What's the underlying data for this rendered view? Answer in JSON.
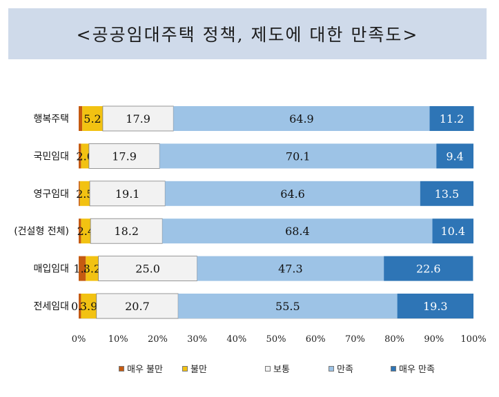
{
  "title": "<공공임대주택 정책, 제도에 대한 만족도>",
  "chart_data": {
    "type": "bar",
    "orientation": "horizontal",
    "stacked": true,
    "percent": true,
    "categories": [
      "행복주택",
      "국민임대",
      "영구임대",
      "(건설형 전체)",
      "매입임대",
      "전세임대"
    ],
    "series": [
      {
        "name": "매우 불만",
        "color": "#c55a11",
        "values": [
          0.9,
          0.6,
          0.3,
          0.6,
          1.8,
          0.6
        ],
        "labels": [
          "",
          "",
          "",
          "",
          "1.8",
          "0.6"
        ]
      },
      {
        "name": "불만",
        "color": "#f2c212",
        "values": [
          5.2,
          2.0,
          2.5,
          2.4,
          3.2,
          3.9
        ],
        "labels": [
          "5.2",
          "2.0",
          "2.5",
          "2.4",
          "3.2",
          "3.9"
        ]
      },
      {
        "name": "보통",
        "color": "#f2f2f2",
        "values": [
          17.9,
          17.9,
          19.1,
          18.2,
          25.0,
          20.7
        ],
        "labels": [
          "17.9",
          "17.9",
          "19.1",
          "18.2",
          "25.0",
          "20.7"
        ]
      },
      {
        "name": "만족",
        "color": "#9dc3e6",
        "values": [
          64.9,
          70.1,
          64.6,
          68.4,
          47.3,
          55.5
        ],
        "labels": [
          "64.9",
          "70.1",
          "64.6",
          "68.4",
          "47.3",
          "55.5"
        ]
      },
      {
        "name": "매우 만족",
        "color": "#2e75b6",
        "values": [
          11.2,
          9.4,
          13.5,
          10.4,
          22.6,
          19.3
        ],
        "labels": [
          "11.2",
          "9.4",
          "13.5",
          "10.4",
          "22.6",
          "19.3"
        ]
      }
    ],
    "xlim": [
      0,
      100
    ],
    "xticks": [
      "0%",
      "10%",
      "20%",
      "30%",
      "40%",
      "50%",
      "60%",
      "70%",
      "80%",
      "90%",
      "100%"
    ],
    "legend_position": "bottom",
    "grid": false
  }
}
